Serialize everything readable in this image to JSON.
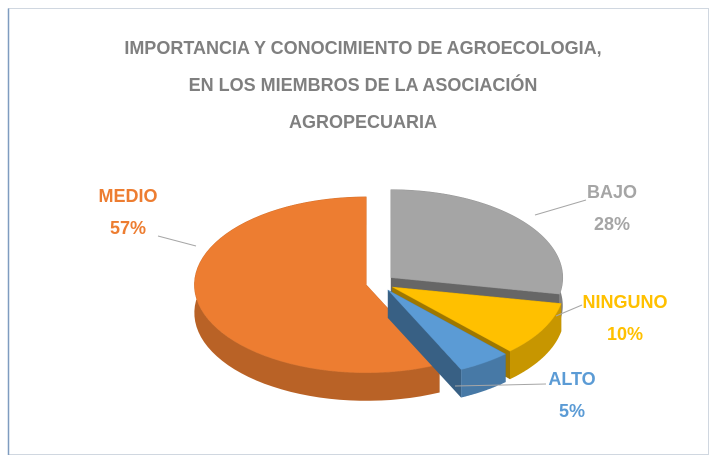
{
  "chart_data": {
    "type": "pie3d",
    "title": "IMPORTANCIA Y CONOCIMIENTO DE AGROECOLOGIA, EN LOS MIEMBROS DE LA ASOCIACIÓN AGROPECUARIA",
    "categories": [
      "BAJO",
      "NINGUNO",
      "ALTO",
      "MEDIO"
    ],
    "values": [
      28,
      10,
      5,
      57
    ],
    "value_labels": [
      "28%",
      "10%",
      "5%",
      "57%"
    ],
    "colors": [
      "#a5a5a5",
      "#ffc000",
      "#5b9bd5",
      "#ed7d31"
    ]
  }
}
